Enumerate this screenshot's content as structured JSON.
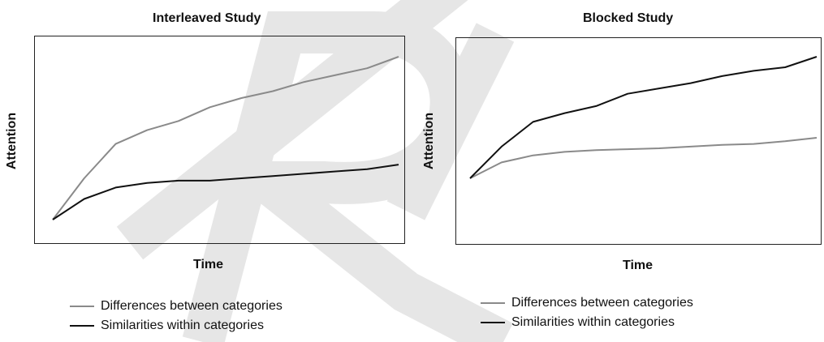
{
  "colors": {
    "differences": "#8a8a8a",
    "similarities": "#111111",
    "watermark": "#e6e6e6"
  },
  "chart_data": [
    {
      "type": "line",
      "title": "Interleaved Study",
      "xlabel": "Time",
      "ylabel": "Attention",
      "x": [
        0,
        1,
        2,
        3,
        4,
        5,
        6,
        7,
        8,
        9,
        10,
        11
      ],
      "xlim": [
        0,
        11.3
      ],
      "ylim": [
        0,
        10
      ],
      "grid": false,
      "legend_position": "below",
      "series": [
        {
          "name": "Differences between categories",
          "color": "#8a8a8a",
          "values": [
            3.2,
            5.0,
            6.5,
            7.1,
            7.5,
            8.1,
            8.5,
            8.8,
            9.2,
            9.5,
            9.8,
            10.3
          ]
        },
        {
          "name": "Similarities within categories",
          "color": "#111111",
          "values": [
            3.2,
            4.1,
            4.6,
            4.8,
            4.9,
            4.9,
            5.0,
            5.1,
            5.2,
            5.3,
            5.4,
            5.6
          ]
        }
      ]
    },
    {
      "type": "line",
      "title": "Blocked Study",
      "xlabel": "Time",
      "ylabel": "Attention",
      "x": [
        0,
        1,
        2,
        3,
        4,
        5,
        6,
        7,
        8,
        9,
        10,
        11
      ],
      "xlim": [
        0,
        11
      ],
      "ylim": [
        0,
        10
      ],
      "grid": false,
      "legend_position": "below",
      "series": [
        {
          "name": "Differences between categories",
          "color": "#8a8a8a",
          "values": [
            3.2,
            4.1,
            4.5,
            4.7,
            4.8,
            4.85,
            4.9,
            5.0,
            5.1,
            5.15,
            5.3,
            5.5
          ]
        },
        {
          "name": "Similarities within categories",
          "color": "#111111",
          "values": [
            3.2,
            5.0,
            6.4,
            6.9,
            7.3,
            8.0,
            8.3,
            8.6,
            9.0,
            9.3,
            9.5,
            10.1
          ]
        }
      ]
    }
  ]
}
